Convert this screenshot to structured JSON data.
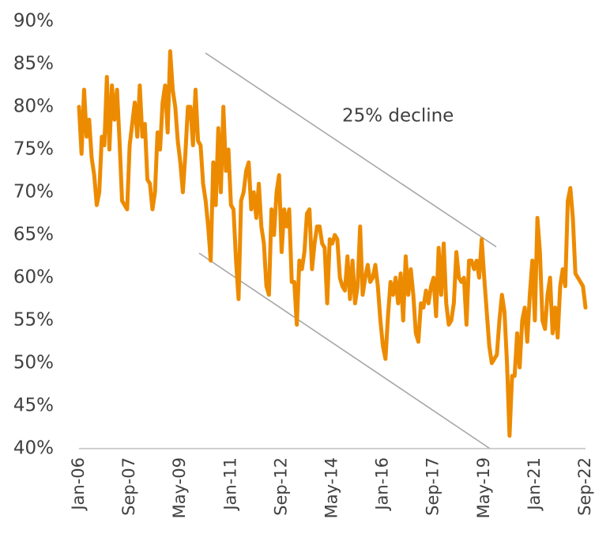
{
  "chart_data": {
    "type": "line",
    "annotations": [
      "25% decline"
    ],
    "categories": [
      "Jan-06",
      null,
      null,
      null,
      null,
      null,
      null,
      null,
      null,
      null,
      null,
      null,
      null,
      null,
      null,
      null,
      null,
      null,
      null,
      null,
      "Sep-07",
      null,
      null,
      null,
      null,
      null,
      null,
      null,
      null,
      null,
      null,
      null,
      null,
      null,
      null,
      null,
      null,
      null,
      null,
      null,
      "May-09",
      null,
      null,
      null,
      null,
      null,
      null,
      null,
      null,
      null,
      null,
      null,
      null,
      null,
      null,
      null,
      null,
      null,
      null,
      null,
      "Jan-11",
      null,
      null,
      null,
      null,
      null,
      null,
      null,
      null,
      null,
      null,
      null,
      null,
      null,
      null,
      null,
      null,
      null,
      null,
      null,
      "Sep-12",
      null,
      null,
      null,
      null,
      null,
      null,
      null,
      null,
      null,
      null,
      null,
      null,
      null,
      null,
      null,
      null,
      null,
      null,
      null,
      "May-14",
      null,
      null,
      null,
      null,
      null,
      null,
      null,
      null,
      null,
      null,
      null,
      null,
      null,
      null,
      null,
      null,
      null,
      null,
      null,
      "Jan-16",
      null,
      null,
      null,
      null,
      null,
      null,
      null,
      null,
      null,
      null,
      null,
      null,
      null,
      null,
      null,
      null,
      null,
      null,
      null,
      "Sep-17",
      null,
      null,
      null,
      null,
      null,
      null,
      null,
      null,
      null,
      null,
      null,
      null,
      null,
      null,
      null,
      null,
      null,
      null,
      null,
      "May-19",
      null,
      null,
      null,
      null,
      null,
      null,
      null,
      null,
      null,
      null,
      null,
      null,
      null,
      null,
      null,
      null,
      null,
      null,
      null,
      "Jan-21",
      null,
      null,
      null,
      null,
      null,
      null,
      null,
      null,
      null,
      null,
      null,
      null,
      null,
      null,
      null,
      null,
      null,
      null,
      null,
      "Sep-22"
    ],
    "series": [
      {
        "color": "#ed8b00",
        "values": [
          80,
          74.5,
          82,
          76.5,
          78.5,
          74,
          72,
          68.5,
          70,
          76.5,
          75.5,
          83.5,
          75,
          82.5,
          78.5,
          82,
          76,
          69,
          68.5,
          68,
          75.5,
          78,
          80.5,
          76.5,
          82.5,
          76.5,
          78,
          71.5,
          71,
          68,
          70,
          77,
          75,
          80.5,
          82.5,
          77,
          86.5,
          82,
          80,
          76,
          73.5,
          70,
          74.5,
          80,
          80,
          75.5,
          82,
          76,
          75.5,
          71,
          69,
          66,
          62,
          73.5,
          68.5,
          77.5,
          70,
          80,
          72.5,
          75,
          68.5,
          68,
          62,
          57.5,
          69,
          70,
          72.5,
          73.5,
          68,
          70,
          67,
          71,
          66,
          64,
          59,
          58,
          68,
          65,
          70,
          72,
          63,
          68,
          66,
          68,
          59.5,
          59.5,
          54.5,
          62,
          61,
          63,
          67.5,
          68,
          61,
          64,
          66,
          66,
          64,
          63.5,
          57,
          64.5,
          64,
          65,
          64.5,
          60,
          59,
          58.5,
          62.5,
          57.5,
          62,
          57,
          59,
          66,
          58,
          60,
          61.5,
          59.5,
          60,
          61.5,
          59,
          55,
          52,
          50.5,
          55.5,
          59.5,
          58,
          60,
          57,
          60.5,
          55,
          62.5,
          58,
          61,
          58,
          53.5,
          52.5,
          57,
          56.5,
          58.5,
          57,
          59,
          60,
          55.5,
          63.5,
          58,
          64,
          57,
          54.5,
          55,
          57,
          63,
          60,
          59.5,
          60,
          54.5,
          62,
          62,
          61,
          62,
          60,
          64.5,
          60,
          56,
          52,
          50,
          50.5,
          51,
          55,
          58,
          56,
          50,
          41.5,
          48.5,
          48.5,
          53.5,
          49.5,
          55,
          56.5,
          52.5,
          58,
          62,
          55,
          67,
          63,
          55,
          54,
          58,
          60,
          53.5,
          56.5,
          53,
          59,
          61,
          59,
          69,
          70.5,
          67,
          60.5,
          60,
          59.5,
          59,
          56.5
        ]
      }
    ],
    "ylim": [
      40,
      90
    ],
    "yticks": [
      {
        "value": 40,
        "label": "40%"
      },
      {
        "value": 45,
        "label": "45%"
      },
      {
        "value": 50,
        "label": "50%"
      },
      {
        "value": 55,
        "label": "55%"
      },
      {
        "value": 60,
        "label": "60%"
      },
      {
        "value": 65,
        "label": "65%"
      },
      {
        "value": 70,
        "label": "70%"
      },
      {
        "value": 75,
        "label": "75%"
      },
      {
        "value": 80,
        "label": "80%"
      },
      {
        "value": 85,
        "label": "85%"
      },
      {
        "value": 90,
        "label": "90%"
      }
    ],
    "grid": false
  }
}
